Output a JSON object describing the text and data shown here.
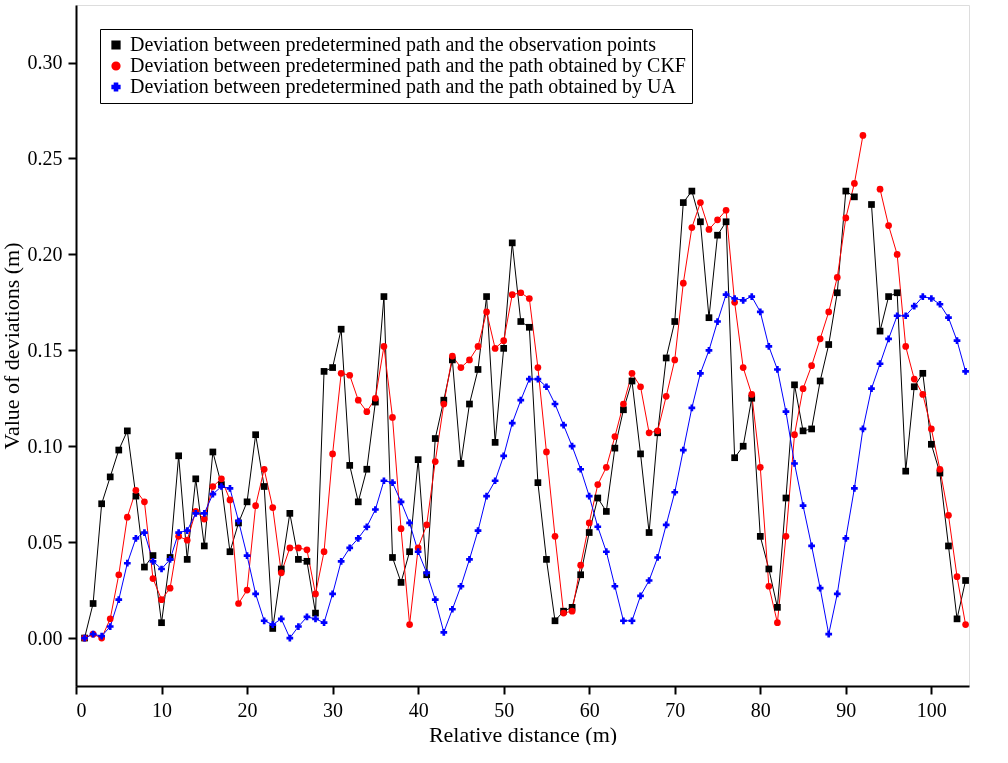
{
  "chart_data": {
    "type": "line",
    "xlabel": "Relative distance  (m)",
    "ylabel": "Value of deviations (m)",
    "xlim": [
      0,
      104.4
    ],
    "xticks": [
      0,
      10,
      20,
      30,
      40,
      50,
      60,
      70,
      80,
      90,
      100
    ],
    "ylim": [
      -0.025,
      0.33
    ],
    "yticks": [
      {
        "value": 0,
        "label": "0.00"
      },
      {
        "value": 0.05,
        "label": "0.05"
      },
      {
        "value": 0.1,
        "label": "0.10"
      },
      {
        "value": 0.15,
        "label": "0.15"
      },
      {
        "value": 0.2,
        "label": "0.20"
      },
      {
        "value": 0.25,
        "label": "0.25"
      },
      {
        "value": 0.3,
        "label": "0.30"
      }
    ],
    "grid": false,
    "legend": "top left",
    "line_style": "solid",
    "x": [
      1,
      2,
      3,
      4,
      5,
      6,
      7,
      8,
      9,
      10,
      11,
      12,
      13,
      14,
      15,
      16,
      17,
      18,
      19,
      20,
      21,
      22,
      23,
      24,
      25,
      26,
      27,
      28,
      29,
      30,
      31,
      32,
      33,
      34,
      35,
      36,
      37,
      38,
      39,
      40,
      41,
      42,
      43,
      44,
      45,
      46,
      47,
      48,
      49,
      50,
      51,
      52,
      53,
      54,
      55,
      56,
      57,
      58,
      59,
      60,
      61,
      62,
      63,
      64,
      65,
      66,
      67,
      68,
      69,
      70,
      71,
      72,
      73,
      74,
      75,
      76,
      77,
      78,
      79,
      80,
      81,
      82,
      83,
      84,
      85,
      86,
      87,
      88,
      89,
      90,
      91,
      92,
      93,
      94,
      95,
      96,
      97,
      98,
      99,
      100,
      101,
      102,
      103,
      104
    ],
    "series": [
      {
        "name": "Deviation between predetermined path and the observation points",
        "color": "#000000",
        "marker": "square",
        "values": [
          0.0,
          0.018,
          0.07,
          0.084,
          0.098,
          0.108,
          0.074,
          0.037,
          0.043,
          0.008,
          0.042,
          0.095,
          0.041,
          0.083,
          0.048,
          0.097,
          0.08,
          0.045,
          0.06,
          0.071,
          0.106,
          0.079,
          0.005,
          0.036,
          0.065,
          0.041,
          0.04,
          0.013,
          0.139,
          0.141,
          0.161,
          0.09,
          0.071,
          0.088,
          0.123,
          0.178,
          0.042,
          0.029,
          0.045,
          0.093,
          0.033,
          0.104,
          0.124,
          0.145,
          0.091,
          0.122,
          0.14,
          0.178,
          0.102,
          0.151,
          0.206,
          0.165,
          0.162,
          0.081,
          0.041,
          0.009,
          0.014,
          0.016,
          0.033,
          0.055,
          0.073,
          0.066,
          0.099,
          0.119,
          0.134,
          0.096,
          0.055,
          0.107,
          0.146,
          0.165,
          0.227,
          0.233,
          0.217,
          0.167,
          0.21,
          0.217,
          0.094,
          0.1,
          0.125,
          0.053,
          0.036,
          0.016,
          0.073,
          0.132,
          0.108,
          0.109,
          0.134,
          0.153,
          0.18,
          0.233,
          0.23,
          null,
          0.226,
          0.16,
          0.178,
          0.18,
          0.087,
          0.131,
          0.138,
          0.101,
          0.086,
          0.048,
          0.01,
          0.03
        ]
      },
      {
        "name": "Deviation between predetermined path and the path obtained by CKF",
        "color": "#ff0000",
        "marker": "circle",
        "values": [
          0.0,
          0.002,
          0.0,
          0.01,
          0.033,
          0.063,
          0.077,
          0.071,
          0.031,
          0.02,
          0.026,
          0.053,
          0.051,
          0.066,
          0.062,
          0.079,
          0.083,
          0.072,
          0.018,
          0.025,
          0.069,
          0.088,
          0.068,
          0.034,
          0.047,
          0.047,
          0.046,
          0.023,
          0.045,
          0.096,
          0.138,
          0.137,
          0.124,
          0.118,
          0.125,
          0.152,
          0.115,
          0.057,
          0.007,
          0.047,
          0.059,
          0.092,
          0.122,
          0.147,
          0.141,
          0.145,
          0.152,
          0.17,
          0.151,
          0.155,
          0.179,
          0.18,
          0.177,
          0.141,
          0.097,
          0.053,
          0.013,
          0.014,
          0.038,
          0.06,
          0.08,
          0.089,
          0.105,
          0.122,
          0.138,
          0.131,
          0.107,
          0.108,
          0.126,
          0.145,
          0.185,
          0.214,
          0.227,
          0.213,
          0.218,
          0.223,
          0.175,
          0.141,
          0.127,
          0.089,
          0.027,
          0.008,
          0.053,
          0.106,
          0.13,
          0.142,
          0.156,
          0.17,
          0.188,
          0.219,
          0.237,
          0.262,
          null,
          0.234,
          0.215,
          0.2,
          0.152,
          0.135,
          0.127,
          0.109,
          0.088,
          0.064,
          0.032,
          0.007
        ]
      },
      {
        "name": "Deviation between predetermined path and the path obtained by UA",
        "color": "#0000ff",
        "marker": "cross",
        "values": [
          0.0,
          0.002,
          0.001,
          0.006,
          0.02,
          0.039,
          0.052,
          0.055,
          0.04,
          0.036,
          0.041,
          0.055,
          0.056,
          0.065,
          0.065,
          0.075,
          0.079,
          0.078,
          0.061,
          0.043,
          0.023,
          0.009,
          0.007,
          0.01,
          0.0,
          0.006,
          0.011,
          0.01,
          0.008,
          0.023,
          0.04,
          0.047,
          0.052,
          0.058,
          0.067,
          0.082,
          0.081,
          0.071,
          0.06,
          0.045,
          0.034,
          0.02,
          0.003,
          0.015,
          0.027,
          0.041,
          0.056,
          0.074,
          0.082,
          0.095,
          0.112,
          0.124,
          0.135,
          0.135,
          0.131,
          0.122,
          0.111,
          0.1,
          0.088,
          0.074,
          0.058,
          0.045,
          0.027,
          0.009,
          0.009,
          0.022,
          0.03,
          0.042,
          0.059,
          0.076,
          0.098,
          0.12,
          0.138,
          0.15,
          0.165,
          0.179,
          0.177,
          0.176,
          0.178,
          0.17,
          0.152,
          0.14,
          0.118,
          0.091,
          0.069,
          0.048,
          0.026,
          0.002,
          0.023,
          0.052,
          0.078,
          0.109,
          0.13,
          0.143,
          0.156,
          0.168,
          0.168,
          0.173,
          0.178,
          0.177,
          0.174,
          0.167,
          0.155,
          0.139
        ]
      }
    ]
  }
}
